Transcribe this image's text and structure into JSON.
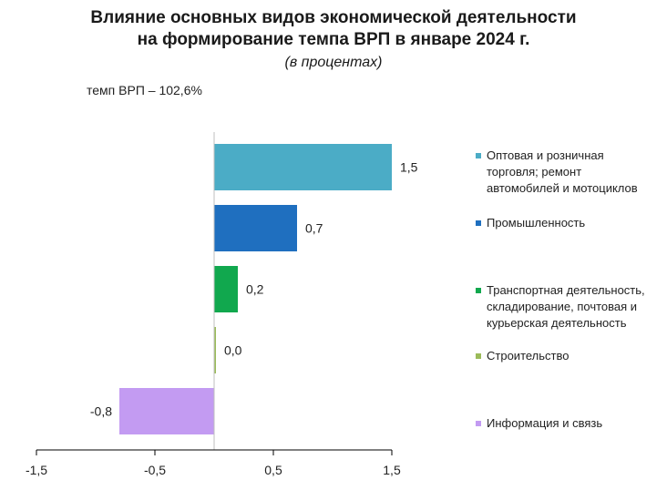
{
  "title": {
    "line1": "Влияние основных видов экономической деятельности",
    "line2": "на формирование темпа ВРП в январе 2024 г.",
    "subtitle": "(в процентах)",
    "gdp_note": "темп ВРП – 102,6%"
  },
  "chart_data": {
    "type": "bar",
    "orientation": "horizontal",
    "categories": [
      "Оптовая и розничная торговля; ремонт автомобилей и мотоциклов",
      "Промышленность",
      "Транспортная деятельность, складирование, почтовая и курьерская деятельность",
      "Строительство",
      "Информация и связь"
    ],
    "legend_lines": [
      [
        "Оптовая и розничная",
        "торговля; ремонт",
        "автомобилей и мотоциклов"
      ],
      [
        "Промышленность"
      ],
      [
        "Транспортная деятельность,",
        "складирование, почтовая и",
        "курьерская деятельность"
      ],
      [
        "Строительство"
      ],
      [
        "Информация и связь"
      ]
    ],
    "values": [
      1.5,
      0.7,
      0.2,
      0.0,
      -0.8
    ],
    "value_labels": [
      "1,5",
      "0,7",
      "0,2",
      "0,0",
      "-0,8"
    ],
    "colors": [
      "#4BACC6",
      "#1F6FBF",
      "#11A84E",
      "#9BBB59",
      "#C39BF2"
    ],
    "xlim": [
      -1.5,
      1.5
    ],
    "xticks": [
      -1.5,
      -0.5,
      0.5,
      1.5
    ],
    "xtick_labels": [
      "-1,5",
      "-0,5",
      "0,5",
      "1,5"
    ],
    "legend_position": "right"
  }
}
